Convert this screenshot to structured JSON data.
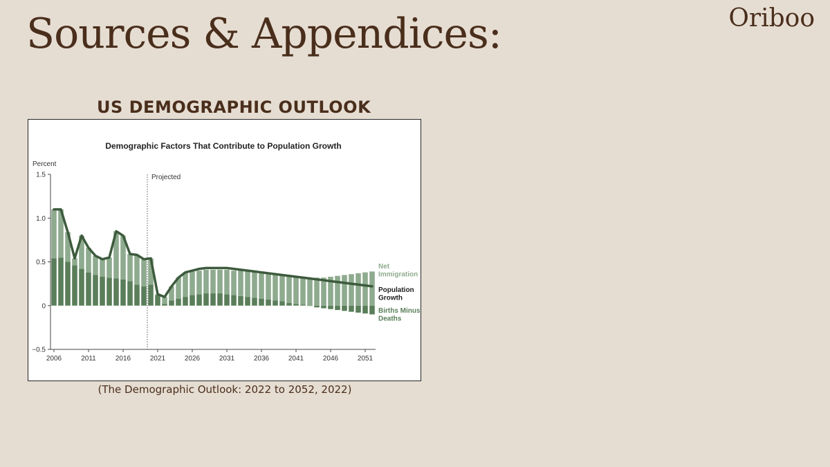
{
  "slide": {
    "title": "Sources & Appendices:",
    "brand": "Oriboo",
    "subtitle": "US DEMOGRAPHIC OUTLOOK",
    "caption": "(The Demographic Outlook: 2022 to 2052, 2022)"
  },
  "chart_data": {
    "type": "bar",
    "title": "Demographic Factors That Contribute to Population Growth",
    "ylabel": "Percent",
    "xlabel": "",
    "ylim": [
      -0.5,
      1.5
    ],
    "yticks": [
      -0.5,
      0,
      0.5,
      1.0,
      1.5
    ],
    "ytick_labels": [
      "−0.5",
      "0",
      "0.5",
      "1.0",
      "1.5"
    ],
    "xticks": [
      2006,
      2011,
      2016,
      2021,
      2026,
      2031,
      2036,
      2041,
      2046,
      2051
    ],
    "projected_from": 2019.5,
    "projected_label": "Projected",
    "legend_placement": "right",
    "colors": {
      "net_immigration": "#8fab8f",
      "births_minus_deaths": "#5a7e5a",
      "population_growth": "#3d5a3d"
    },
    "x": [
      2006,
      2007,
      2008,
      2009,
      2010,
      2011,
      2012,
      2013,
      2014,
      2015,
      2016,
      2017,
      2018,
      2019,
      2020,
      2021,
      2022,
      2023,
      2024,
      2025,
      2026,
      2027,
      2028,
      2029,
      2030,
      2031,
      2032,
      2033,
      2034,
      2035,
      2036,
      2037,
      2038,
      2039,
      2040,
      2041,
      2042,
      2043,
      2044,
      2045,
      2046,
      2047,
      2048,
      2049,
      2050,
      2051,
      2052
    ],
    "series": [
      {
        "name": "Births Minus Deaths",
        "values": [
          0.54,
          0.55,
          0.5,
          0.46,
          0.42,
          0.38,
          0.35,
          0.33,
          0.32,
          0.31,
          0.3,
          0.28,
          0.24,
          0.22,
          0.24,
          0.12,
          0.02,
          0.06,
          0.08,
          0.1,
          0.12,
          0.13,
          0.14,
          0.14,
          0.14,
          0.13,
          0.12,
          0.11,
          0.1,
          0.09,
          0.08,
          0.07,
          0.06,
          0.05,
          0.03,
          0.02,
          0.01,
          0.0,
          -0.02,
          -0.03,
          -0.04,
          -0.05,
          -0.06,
          -0.07,
          -0.08,
          -0.09,
          -0.1
        ]
      },
      {
        "name": "Net Immigration",
        "values": [
          0.56,
          0.55,
          0.34,
          0.08,
          0.38,
          0.28,
          0.22,
          0.2,
          0.23,
          0.54,
          0.5,
          0.31,
          0.34,
          0.31,
          0.3,
          0.01,
          0.08,
          0.16,
          0.24,
          0.28,
          0.27,
          0.27,
          0.27,
          0.27,
          0.27,
          0.28,
          0.28,
          0.29,
          0.29,
          0.3,
          0.3,
          0.3,
          0.3,
          0.3,
          0.31,
          0.31,
          0.31,
          0.31,
          0.32,
          0.32,
          0.33,
          0.34,
          0.35,
          0.36,
          0.37,
          0.38,
          0.39
        ]
      },
      {
        "name": "Population Growth",
        "values": [
          1.1,
          1.1,
          0.84,
          0.54,
          0.8,
          0.66,
          0.57,
          0.53,
          0.55,
          0.85,
          0.8,
          0.59,
          0.58,
          0.53,
          0.54,
          0.13,
          0.1,
          0.22,
          0.32,
          0.38,
          0.4,
          0.42,
          0.43,
          0.43,
          0.43,
          0.43,
          0.42,
          0.41,
          0.4,
          0.39,
          0.38,
          0.37,
          0.36,
          0.35,
          0.34,
          0.33,
          0.32,
          0.31,
          0.3,
          0.29,
          0.28,
          0.27,
          0.26,
          0.25,
          0.24,
          0.23,
          0.22
        ]
      }
    ],
    "legend": [
      {
        "line1": "Net",
        "line2": "Immigration"
      },
      {
        "line1": "Population",
        "line2": "Growth"
      },
      {
        "line1": "Births Minus",
        "line2": "Deaths"
      }
    ]
  }
}
